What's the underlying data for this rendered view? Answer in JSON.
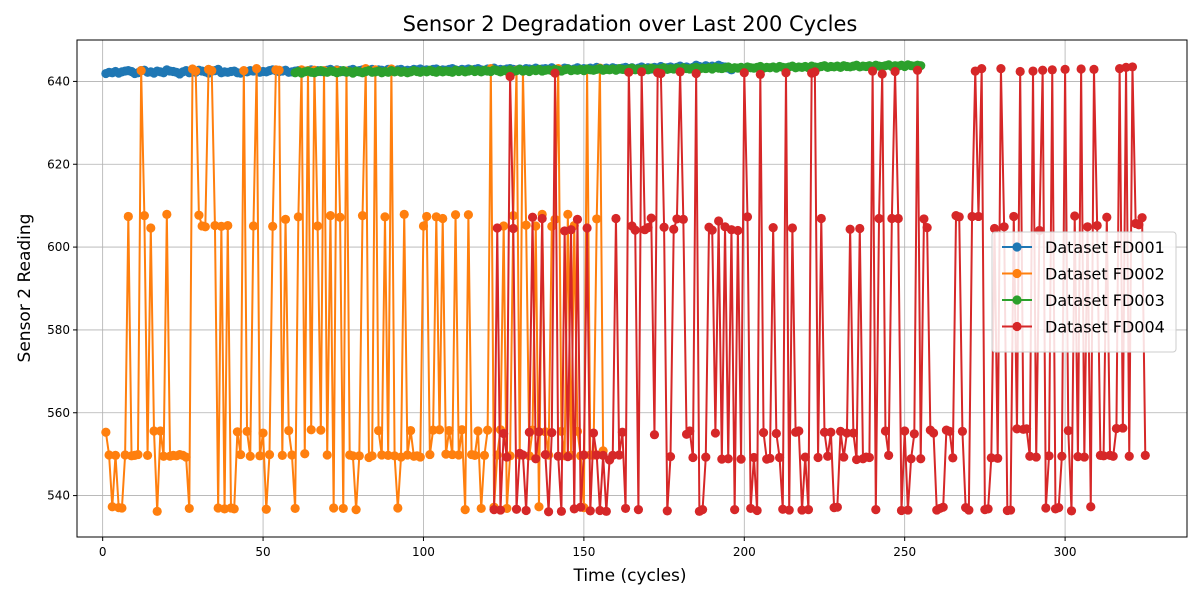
{
  "chart_data": {
    "type": "line",
    "title": "Sensor 2 Degradation over Last 200 Cycles",
    "xlabel": "Time (cycles)",
    "ylabel": "Sensor 2 Reading",
    "xlim": [
      -8,
      338
    ],
    "ylim": [
      530,
      650
    ],
    "xticks": [
      0,
      50,
      100,
      150,
      200,
      250,
      300
    ],
    "yticks": [
      540,
      560,
      580,
      600,
      620,
      640
    ],
    "grid": true,
    "legend_position": "center-right",
    "markers": true,
    "series": [
      {
        "name": "Dataset FD001",
        "color": "#1f77b4",
        "x_start": 1,
        "y": [
          641.9,
          642.2,
          642.1,
          642.4,
          642.0,
          642.3,
          642.5,
          642.6,
          642.4,
          641.9,
          642.1,
          642.6,
          642.7,
          642.2,
          642.3,
          642.0,
          642.5,
          642.3,
          642.1,
          642.8,
          642.5,
          642.4,
          642.2,
          641.8,
          642.3,
          642.6,
          642.1,
          642.4,
          642.2,
          642.7,
          642.5,
          642.3,
          642.0,
          642.5,
          642.6,
          642.9,
          642.1,
          642.3,
          642.2,
          642.4,
          642.5,
          642.1,
          642.0,
          642.4,
          642.3,
          642.6,
          642.5,
          642.7,
          642.2,
          642.4,
          642.3,
          642.6,
          642.8,
          642.6,
          642.4,
          642.5,
          642.7,
          642.2,
          642.3,
          642.5,
          642.6,
          642.3,
          642.5,
          642.4,
          642.8,
          642.3,
          642.6,
          642.4,
          642.5,
          642.7,
          642.9,
          642.5,
          642.8,
          642.6,
          642.4,
          642.5,
          642.7,
          642.9,
          642.4,
          642.6,
          642.8,
          642.5,
          642.7,
          642.9,
          642.6,
          642.8,
          642.7,
          642.5,
          642.9,
          642.6,
          642.4,
          642.8,
          642.9,
          642.5,
          642.7,
          642.6,
          642.9,
          642.8,
          643.0,
          642.7,
          642.8,
          642.6,
          642.9,
          643.0,
          642.5,
          642.8,
          642.7,
          642.9,
          643.1,
          642.8,
          642.6,
          642.9,
          642.8,
          643.0,
          642.7,
          642.9,
          643.1,
          642.8,
          642.6,
          643.0,
          642.9,
          643.2,
          642.7,
          642.9,
          642.8,
          643.0,
          643.1,
          642.9,
          642.8,
          643.0,
          642.6,
          643.1,
          643.0,
          642.9,
          643.2,
          642.8,
          643.0,
          643.1,
          642.9,
          643.3,
          642.8,
          643.0,
          642.9,
          643.2,
          643.1,
          642.8,
          643.0,
          643.3,
          642.9,
          643.1,
          643.0,
          643.2,
          642.9,
          643.4,
          643.1,
          643.0,
          643.2,
          642.9,
          643.3,
          643.1,
          643.0,
          643.2,
          643.4,
          643.1,
          643.3,
          642.9,
          643.2,
          643.5,
          643.1,
          643.3,
          643.0,
          643.4,
          643.2,
          643.6,
          643.1,
          643.3,
          643.5,
          643.2,
          643.4,
          643.7,
          643.3,
          643.5,
          643.2,
          643.4,
          643.9,
          643.6,
          643.3,
          643.8,
          643.5,
          643.7,
          643.4,
          643.9,
          643.6,
          643.5,
          643.2,
          642.8
        ]
      },
      {
        "name": "Dataset FD002",
        "color": "#ff7f0e",
        "x_start": 1,
        "y": [
          555.3,
          549.8,
          537.3,
          549.7,
          537.1,
          537.0,
          549.8,
          607.4,
          549.6,
          549.7,
          549.9,
          642.6,
          607.6,
          549.7,
          604.6,
          555.6,
          536.2,
          555.6,
          549.5,
          607.9,
          549.5,
          549.7,
          549.6,
          549.9,
          549.7,
          549.3,
          536.9,
          643.0,
          642.5,
          607.7,
          605.1,
          604.9,
          642.9,
          642.6,
          605.2,
          537.0,
          605.0,
          536.8,
          605.2,
          537.0,
          536.8,
          555.4,
          549.9,
          642.6,
          555.5,
          549.5,
          605.1,
          643.1,
          549.6,
          555.1,
          536.7,
          549.9,
          605.0,
          642.8,
          642.7,
          549.7,
          606.7,
          555.7,
          549.8,
          536.9,
          607.3,
          642.8,
          550.1,
          642.6,
          555.9,
          642.7,
          605.1,
          555.8,
          642.6,
          549.8,
          607.6,
          537.0,
          642.7,
          607.2,
          536.9,
          642.5,
          549.8,
          549.6,
          536.6,
          549.6,
          607.6,
          643.1,
          549.2,
          549.6,
          642.8,
          555.7,
          549.8,
          607.3,
          549.7,
          643.0,
          549.6,
          537.0,
          549.3,
          607.9,
          549.8,
          555.7,
          549.5,
          549.6,
          549.3,
          605.1,
          607.4,
          549.9,
          555.8,
          607.3,
          555.9,
          606.9,
          550.0,
          555.7,
          549.9,
          607.8,
          549.8,
          555.9,
          536.6,
          607.8,
          549.9,
          549.7,
          555.6,
          536.9,
          549.7,
          555.8,
          643.1,
          537.2,
          549.8,
          555.9,
          605.1,
          536.9,
          549.6,
          607.6,
          642.7,
          549.8,
          642.5,
          605.3,
          549.6,
          555.8,
          605.1,
          537.3,
          607.9,
          555.4,
          549.8,
          605.0,
          606.7,
          643.1,
          555.5,
          549.6,
          607.9,
          549.7,
          605.2,
          555.5,
          549.6,
          537.1,
          642.9,
          549.8,
          549.8,
          606.8,
          643.2,
          550.8
        ]
      },
      {
        "name": "Dataset FD003",
        "color": "#2ca02c",
        "x_start": 60,
        "y": [
          642.1,
          642.4,
          642.0,
          642.3,
          642.5,
          642.2,
          642.1,
          642.4,
          642.6,
          642.3,
          642.2,
          642.5,
          642.4,
          642.1,
          642.3,
          642.6,
          642.2,
          642.4,
          642.0,
          642.5,
          642.3,
          642.1,
          642.4,
          642.6,
          642.2,
          642.3,
          642.5,
          642.1,
          642.4,
          642.2,
          642.6,
          642.3,
          642.5,
          642.2,
          642.4,
          642.1,
          642.3,
          642.6,
          642.4,
          642.2,
          642.5,
          642.3,
          642.7,
          642.4,
          642.2,
          642.6,
          642.3,
          642.5,
          642.4,
          642.2,
          642.7,
          642.4,
          642.6,
          642.3,
          642.5,
          642.8,
          642.4,
          642.6,
          642.3,
          642.7,
          642.5,
          642.4,
          642.8,
          642.6,
          642.3,
          642.7,
          642.5,
          642.8,
          642.4,
          642.6,
          642.9,
          642.5,
          642.7,
          642.4,
          642.8,
          642.6,
          642.9,
          642.5,
          642.7,
          642.8,
          642.6,
          642.9,
          642.7,
          642.5,
          642.8,
          643.0,
          642.6,
          642.8,
          642.7,
          642.9,
          642.6,
          643.0,
          642.8,
          642.7,
          642.9,
          643.1,
          642.7,
          642.9,
          642.8,
          643.0,
          642.7,
          643.1,
          642.9,
          642.8,
          643.0,
          643.2,
          642.8,
          643.0,
          642.9,
          643.1,
          642.8,
          643.2,
          643.0,
          642.9,
          643.1,
          643.3,
          642.9,
          643.1,
          643.0,
          643.2,
          642.9,
          643.3,
          643.1,
          643.0,
          643.2,
          643.4,
          643.0,
          643.2,
          643.1,
          643.3,
          643.0,
          643.4,
          643.2,
          643.1,
          643.3,
          643.5,
          643.1,
          643.3,
          643.2,
          643.4,
          643.1,
          643.5,
          643.3,
          643.2,
          643.4,
          643.6,
          643.2,
          643.4,
          643.3,
          643.5,
          643.2,
          643.6,
          643.4,
          643.3,
          643.5,
          643.7,
          643.3,
          643.5,
          643.4,
          643.6,
          643.3,
          643.7,
          643.5,
          643.4,
          643.6,
          643.8,
          643.4,
          643.6,
          643.5,
          643.7,
          643.4,
          643.8,
          643.6,
          643.5,
          643.7,
          643.9,
          643.5,
          643.7,
          643.6,
          643.8,
          643.5,
          643.9,
          643.7,
          643.6,
          643.8,
          644.0,
          643.6,
          643.8,
          643.7,
          643.9,
          643.6,
          644.0,
          643.8,
          643.7,
          643.9,
          643.8
        ]
      },
      {
        "name": "Dataset FD004",
        "color": "#d62728",
        "x_start": 122,
        "y": [
          536.6,
          604.6,
          536.5,
          555.0,
          549.3,
          641.2,
          604.5,
          536.7,
          550.2,
          549.8,
          536.4,
          555.3,
          607.2,
          548.9,
          555.4,
          606.9,
          549.9,
          536.1,
          555.2,
          642.0,
          549.5,
          536.2,
          603.9,
          549.4,
          604.2,
          536.8,
          606.7,
          537.2,
          549.8,
          604.6,
          536.3,
          555.1,
          549.8,
          536.4,
          549.7,
          536.2,
          548.6,
          549.7,
          606.9,
          549.8,
          555.3,
          536.9,
          642.2,
          605.1,
          604.1,
          536.6,
          642.3,
          604.2,
          604.7,
          607.0,
          554.7,
          642.1,
          641.9,
          604.8,
          536.3,
          549.4,
          604.3,
          606.8,
          642.3,
          606.7,
          554.8,
          555.6,
          549.2,
          641.9,
          536.2,
          536.6,
          549.3,
          604.8,
          604.1,
          555.1,
          606.3,
          548.8,
          604.9,
          548.9,
          604.2,
          536.6,
          604.0,
          548.8,
          642.1,
          607.3,
          536.9,
          549.2,
          536.4,
          641.7,
          555.2,
          548.8,
          549.0,
          604.7,
          555.0,
          549.2,
          536.7,
          642.1,
          536.5,
          604.6,
          555.3,
          555.6,
          536.5,
          549.3,
          536.6,
          642.0,
          642.3,
          549.2,
          606.9,
          555.3,
          549.5,
          555.3,
          537.1,
          537.2,
          555.5,
          549.3,
          555.1,
          604.3,
          555.1,
          548.7,
          604.5,
          548.9,
          549.3,
          549.2,
          642.5,
          536.6,
          606.9,
          641.8,
          555.6,
          549.7,
          606.9,
          642.4,
          606.9,
          536.4,
          555.6,
          536.5,
          548.9,
          554.9,
          642.7,
          548.9,
          606.8,
          604.7,
          555.8,
          555.1,
          536.5,
          536.9,
          537.2,
          555.8,
          555.5,
          549.1,
          607.6,
          607.3,
          555.5,
          537.1,
          536.5,
          607.4,
          642.5,
          607.4,
          643.1,
          536.6,
          536.8,
          549.1,
          604.5,
          549.0,
          643.1,
          604.9,
          536.4,
          536.5,
          607.4,
          556.1,
          642.4,
          556.0,
          556.1,
          549.5,
          642.5,
          549.3,
          604.0,
          642.7,
          537.0,
          549.6,
          642.8,
          536.8,
          537.1,
          549.5,
          642.9,
          555.7,
          536.3,
          607.5,
          549.4,
          643.0,
          549.3,
          604.9,
          537.3,
          642.9,
          605.2,
          549.7,
          549.6,
          607.2,
          549.7,
          549.5,
          556.2,
          643.1,
          556.3,
          643.4,
          549.5,
          643.5,
          605.7,
          605.4,
          607.1,
          549.7
        ]
      }
    ]
  }
}
